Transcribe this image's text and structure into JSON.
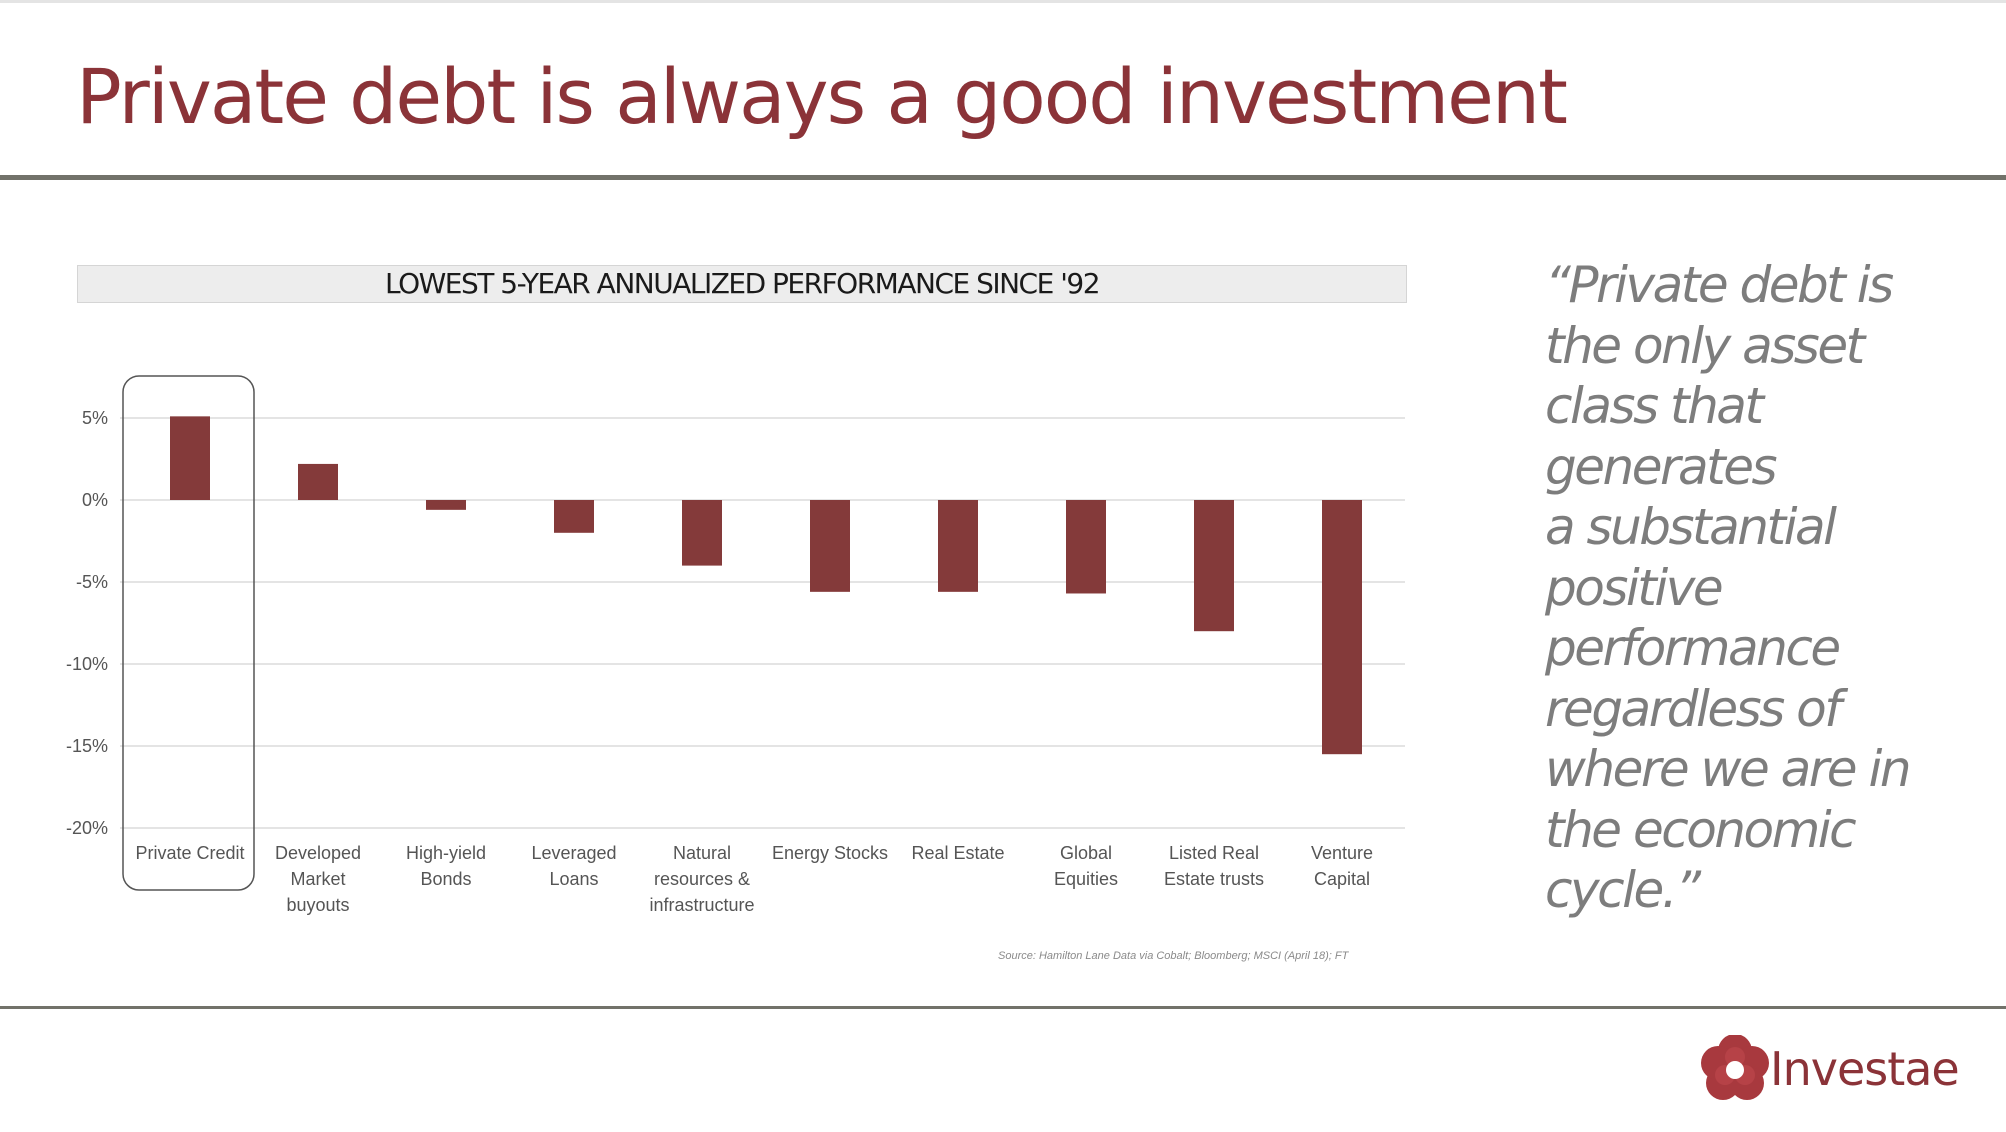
{
  "page": {
    "title": "Private debt is always a good investment",
    "quote_lines": [
      "“Private debt is",
      "the only asset",
      "class that",
      "generates",
      "a  substantial",
      "positive",
      "performance",
      "regardless of",
      "where we are in",
      "the economic",
      "cycle.”"
    ],
    "source": "Source: Hamilton Lane Data via Cobalt; Bloomberg; MSCI (April 18); FT",
    "brand": "Investae"
  },
  "colors": {
    "accent": "#8b3338",
    "bar": "#843a3a",
    "rule": "#72726a",
    "quote_text": "#7d7d7d"
  },
  "icons": {
    "logo": "investae-flower-logo"
  },
  "chart_data": {
    "type": "bar",
    "title": "LOWEST 5-YEAR ANNUALIZED PERFORMANCE SINCE '92",
    "categories": [
      [
        "Private Credit"
      ],
      [
        "Developed",
        "Market",
        "buyouts"
      ],
      [
        "High-yield",
        "Bonds"
      ],
      [
        "Leveraged",
        "Loans"
      ],
      [
        "Natural",
        "resources &",
        "infrastructure"
      ],
      [
        "Energy Stocks"
      ],
      [
        "Real Estate"
      ],
      [
        "Global",
        "Equities"
      ],
      [
        "Listed Real",
        "Estate trusts"
      ],
      [
        "Venture",
        "Capital"
      ]
    ],
    "values": [
      5.1,
      2.2,
      -0.6,
      -2.0,
      -4.0,
      -5.6,
      -5.6,
      -5.7,
      -8.0,
      -15.5
    ],
    "yticks": [
      "5%",
      "0%",
      "-5%",
      "-10%",
      "-15%",
      "-20%"
    ],
    "ytick_values": [
      5,
      0,
      -5,
      -10,
      -15,
      -20
    ],
    "ylim": [
      -20,
      5
    ],
    "highlight_category": "Private Credit",
    "grid": true,
    "xlabel": "",
    "ylabel": ""
  }
}
